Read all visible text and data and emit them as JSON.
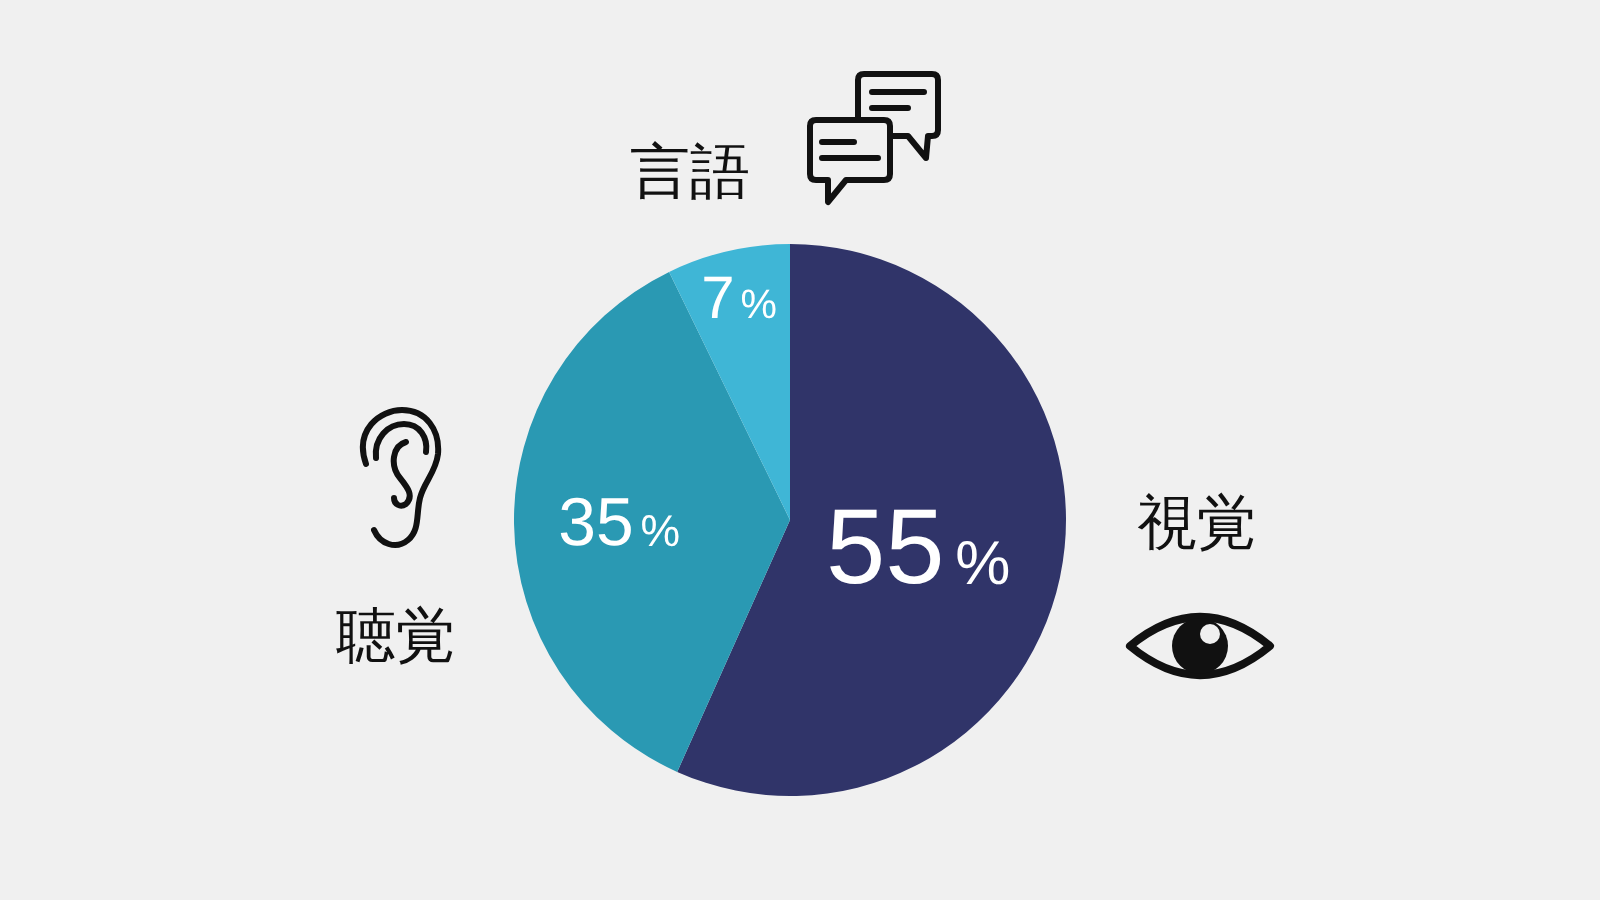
{
  "chart_data": {
    "type": "pie",
    "categories": [
      "視覚",
      "聴覚",
      "言語"
    ],
    "values": [
      55,
      35,
      7
    ],
    "colors": [
      "#303469",
      "#2a99b3",
      "#3fb6d6"
    ],
    "value_labels": [
      "55%",
      "35%",
      "7%"
    ]
  }
}
